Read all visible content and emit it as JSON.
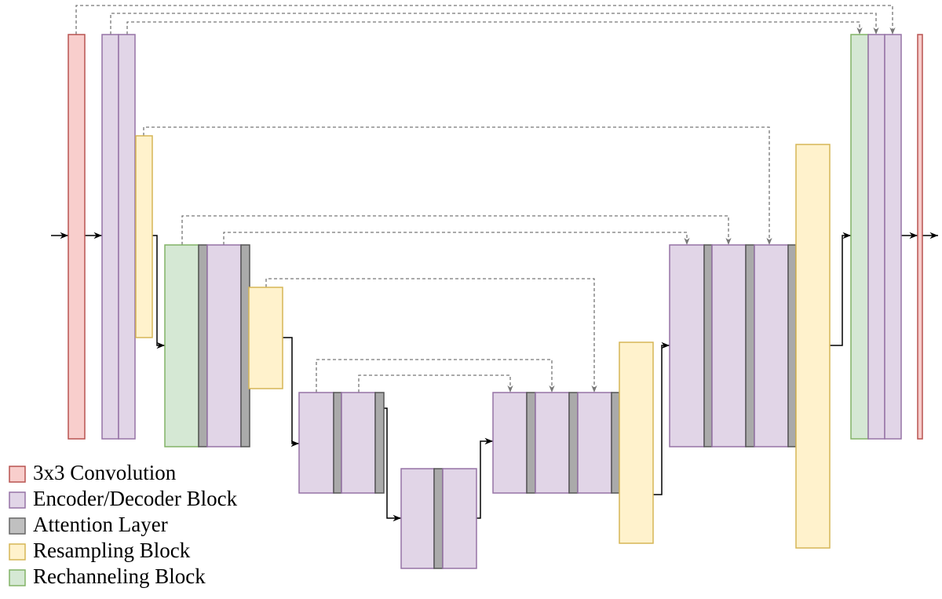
{
  "legend": {
    "items": [
      {
        "label": "3x3 Convolution"
      },
      {
        "label": "Encoder/Decoder Block"
      },
      {
        "label": "Attention Layer"
      },
      {
        "label": "Resampling Block"
      },
      {
        "label": "Rechanneling Block"
      }
    ]
  }
}
